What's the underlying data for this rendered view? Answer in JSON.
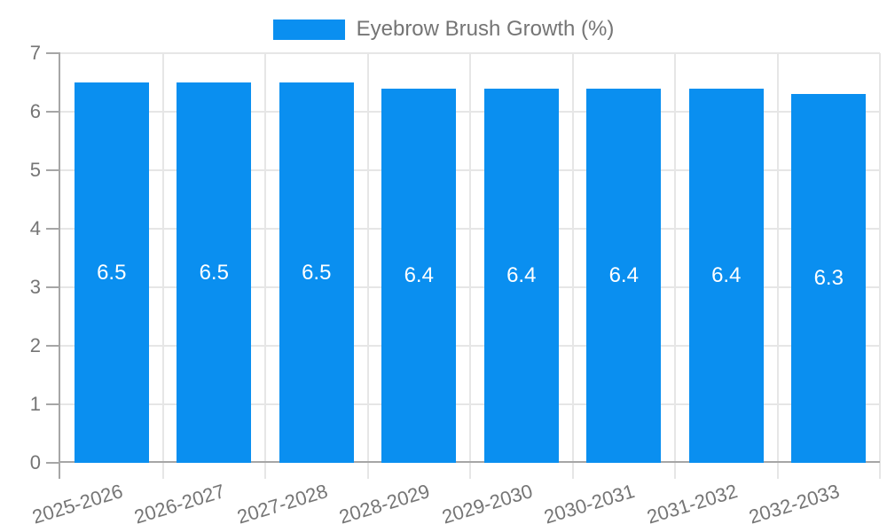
{
  "legend": {
    "label": "Eyebrow Brush Growth (%)",
    "swatch_color": "#0a8ff0"
  },
  "chart_data": {
    "type": "bar",
    "title": "Eyebrow Brush Growth (%)",
    "categories": [
      "2025-2026",
      "2026-2027",
      "2027-2028",
      "2028-2029",
      "2029-2030",
      "2030-2031",
      "2031-2032",
      "2032-2033"
    ],
    "values": [
      6.5,
      6.5,
      6.5,
      6.4,
      6.4,
      6.4,
      6.4,
      6.3
    ],
    "xlabel": "",
    "ylabel": "",
    "ylim": [
      0,
      7
    ],
    "yticks": [
      0,
      1,
      2,
      3,
      4,
      5,
      6,
      7
    ],
    "grid": true,
    "legend_position": "top",
    "bar_color": "#0a8ff0",
    "value_label_color": "#ffffff"
  },
  "colors": {
    "background": "#ffffff",
    "bar": "#0a8ff0",
    "gridline": "#e6e6e6",
    "axis_line": "#a6a6a6",
    "tick_text": "#757575",
    "legend_text": "#757575",
    "value_label": "#ffffff"
  }
}
